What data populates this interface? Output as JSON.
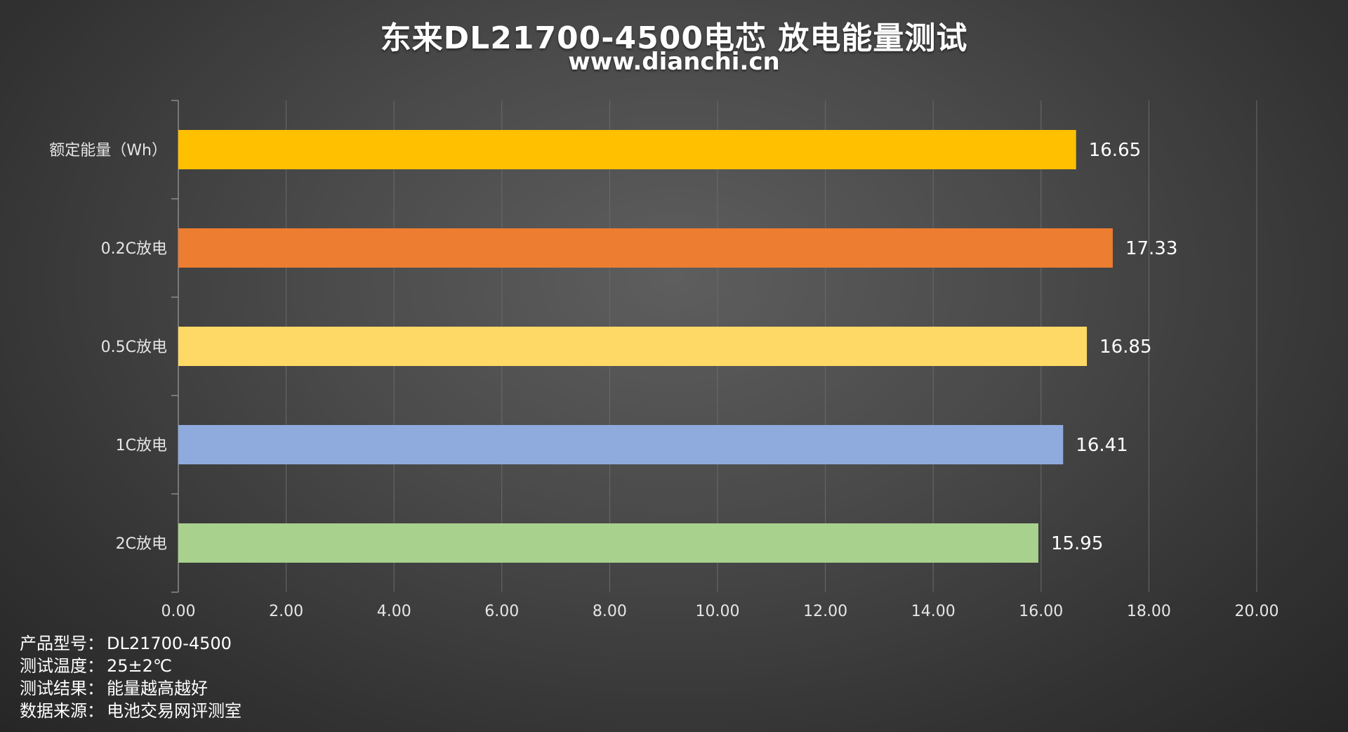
{
  "chart_data": {
    "type": "bar",
    "orientation": "horizontal",
    "title": "东来DL21700-4500电芯 放电能量测试",
    "subtitle": "www.dianchi.cn",
    "categories": [
      "额定能量（Wh）",
      "0.2C放电",
      "0.5C放电",
      "1C放电",
      "2C放电"
    ],
    "values": [
      16.65,
      17.33,
      16.85,
      16.41,
      15.95
    ],
    "value_labels": [
      "16.65",
      "17.33",
      "16.85",
      "16.41",
      "15.95"
    ],
    "bar_colors": [
      "#ffc000",
      "#ed7d31",
      "#ffd966",
      "#8faadc",
      "#a9d18e"
    ],
    "xlim": [
      0,
      20
    ],
    "x_ticks": [
      "0.00",
      "2.00",
      "4.00",
      "6.00",
      "8.00",
      "10.00",
      "12.00",
      "14.00",
      "16.00",
      "18.00",
      "20.00"
    ],
    "grid": true,
    "legend": "none"
  },
  "info": [
    {
      "label": "产品型号：",
      "value": "DL21700-4500"
    },
    {
      "label": "测试温度：",
      "value": "25±2℃"
    },
    {
      "label": "测试结果：",
      "value": "能量越高越好"
    },
    {
      "label": "数据来源：",
      "value": "电池交易网评测室"
    }
  ]
}
